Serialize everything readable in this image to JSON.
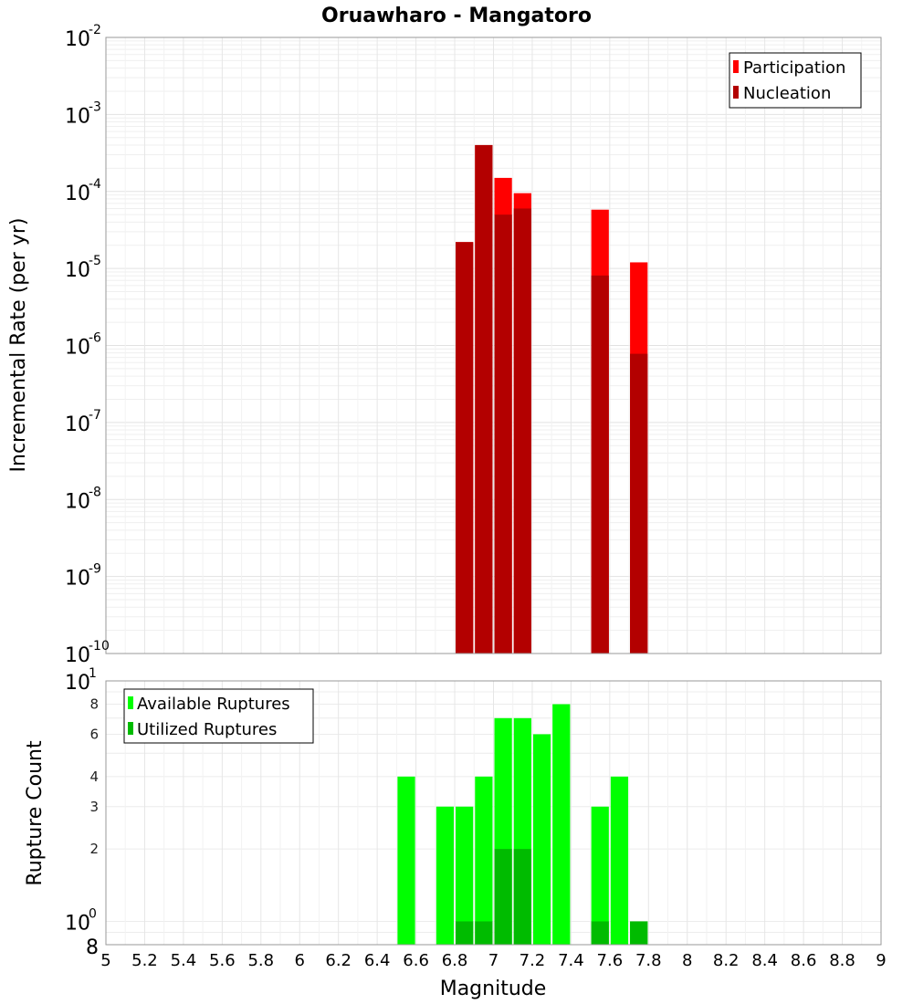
{
  "title": "Oruawharo - Mangatoro",
  "chart_data": [
    {
      "type": "bar",
      "yscale": "log",
      "ylabel": "Incremental Rate (per yr)",
      "xlabel": "",
      "xlim": [
        5,
        9
      ],
      "ylim": [
        1e-10,
        0.01
      ],
      "y_ticks": [
        {
          "base": "10",
          "exp": "-2",
          "value": 0.01
        },
        {
          "base": "10",
          "exp": "-3",
          "value": 0.001
        },
        {
          "base": "10",
          "exp": "-4",
          "value": 0.0001
        },
        {
          "base": "10",
          "exp": "-5",
          "value": 1e-05
        },
        {
          "base": "10",
          "exp": "-6",
          "value": 1e-06
        },
        {
          "base": "10",
          "exp": "-7",
          "value": 1e-07
        },
        {
          "base": "10",
          "exp": "-8",
          "value": 1e-08
        },
        {
          "base": "10",
          "exp": "-9",
          "value": 1e-09
        },
        {
          "base": "10",
          "exp": "-10",
          "value": 1e-10
        }
      ],
      "x": [
        6.85,
        6.95,
        7.05,
        7.15,
        7.55,
        7.75
      ],
      "series": [
        {
          "name": "Participation",
          "color": "#ff0000",
          "values": [
            2.2e-05,
            0.0004,
            0.00015,
            9.5e-05,
            5.8e-05,
            1.2e-05
          ]
        },
        {
          "name": "Nucleation",
          "color": "#b30000",
          "values": [
            2.2e-05,
            0.0004,
            5e-05,
            6e-05,
            8.1e-06,
            7.8e-07
          ]
        }
      ],
      "legend": "top-right"
    },
    {
      "type": "bar",
      "yscale": "log",
      "ylabel": "Rupture Count",
      "xlabel": "Magnitude",
      "xlim": [
        5,
        9
      ],
      "ylim": [
        0.8,
        10
      ],
      "x_ticks": [
        "5",
        "5.2",
        "5.4",
        "5.6",
        "5.8",
        "6",
        "6.2",
        "6.4",
        "6.6",
        "6.8",
        "7",
        "7.2",
        "7.4",
        "7.6",
        "7.8",
        "8",
        "8.2",
        "8.4",
        "8.6",
        "8.8",
        "9"
      ],
      "y_major_ticks": [
        {
          "base": "10",
          "exp": "1",
          "value": 10
        },
        {
          "base": "10",
          "exp": "0",
          "value": 1
        }
      ],
      "y_minor_ticks": [
        {
          "label": "8",
          "value": 8
        },
        {
          "label": "6",
          "value": 6
        },
        {
          "label": "4",
          "value": 4
        },
        {
          "label": "3",
          "value": 3
        },
        {
          "label": "2",
          "value": 2
        }
      ],
      "y_bottom_label": {
        "label": "8",
        "value": 0.8
      },
      "x": [
        6.55,
        6.75,
        6.85,
        6.95,
        7.05,
        7.15,
        7.25,
        7.35,
        7.55,
        7.65,
        7.75
      ],
      "series": [
        {
          "name": "Available Ruptures",
          "color": "#00ff00",
          "values": [
            4,
            3,
            3,
            4,
            7,
            7,
            6,
            8,
            3,
            4,
            1
          ]
        },
        {
          "name": "Utilized Ruptures",
          "color": "#00bb00",
          "values": [
            0,
            0,
            1,
            1,
            2,
            2,
            0,
            0,
            1,
            0,
            1
          ]
        }
      ],
      "legend": "top-left"
    }
  ]
}
